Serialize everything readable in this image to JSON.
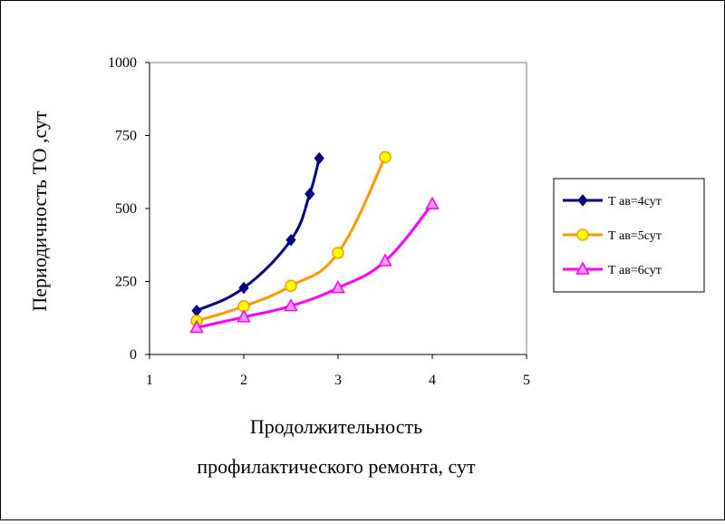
{
  "chart_data": {
    "type": "line",
    "title": "",
    "xlabel_lines": [
      "Продолжительность",
      "профилактического ремонта, сут"
    ],
    "ylabel": "Периодичность ТО ,сут",
    "xlim": [
      1,
      5
    ],
    "ylim": [
      0,
      1000
    ],
    "x_ticks": [
      "1",
      "2",
      "3",
      "4",
      "5"
    ],
    "y_ticks": [
      "0",
      "250",
      "500",
      "750",
      "1000"
    ],
    "grid": "horizontal",
    "plot_background": "#ffffff",
    "legend_position": "right",
    "series": [
      {
        "name": "Т ав=4сут",
        "color": "#000080",
        "marker": "diamond",
        "x": [
          1.5,
          2.0,
          2.5,
          2.7,
          2.8
        ],
        "y": [
          150,
          228,
          392,
          550,
          672
        ]
      },
      {
        "name": "Т ав=5сут",
        "color": "#FF9900",
        "marker_fill": "#FFFF00",
        "marker": "circle",
        "x": [
          1.5,
          2.0,
          2.5,
          3.0,
          3.5
        ],
        "y": [
          115,
          165,
          235,
          348,
          676
        ]
      },
      {
        "name": "Т ав=6сут",
        "color": "#FF00FF",
        "marker_fill": "#FF99FF",
        "marker": "triangle",
        "x": [
          1.5,
          2.0,
          2.5,
          3.0,
          3.5,
          4.0
        ],
        "y": [
          92,
          128,
          166,
          228,
          320,
          515
        ]
      }
    ]
  }
}
